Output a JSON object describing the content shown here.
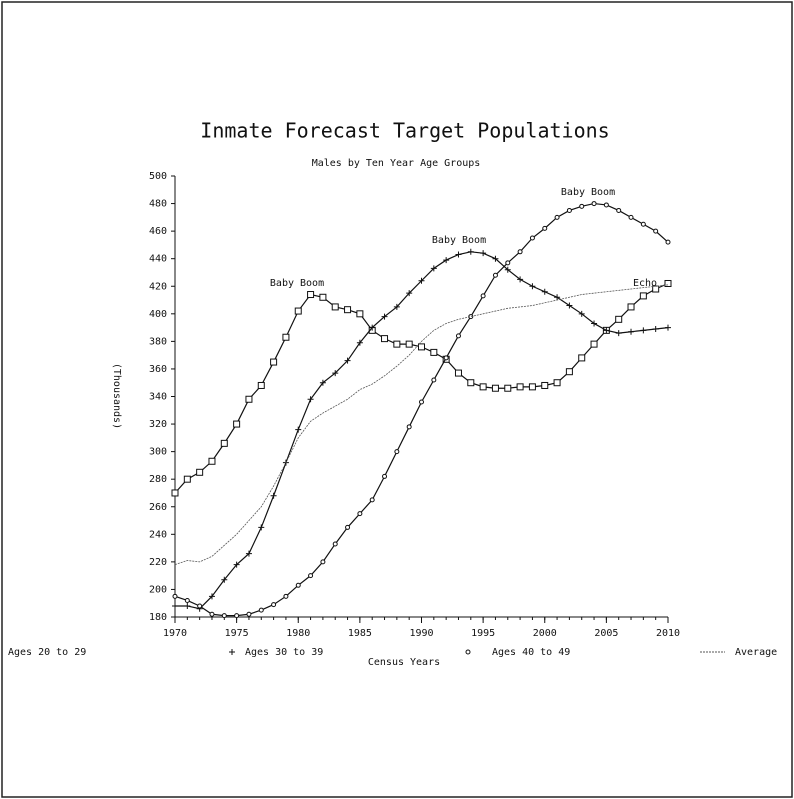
{
  "chart_data": {
    "type": "line",
    "title": "Inmate Forecast Target Populations",
    "subtitle": "Males by Ten Year Age Groups",
    "x_label": "Census Years",
    "y_label": "(Thousands)",
    "x": [
      1970,
      1971,
      1972,
      1973,
      1974,
      1975,
      1976,
      1977,
      1978,
      1979,
      1980,
      1981,
      1982,
      1983,
      1984,
      1985,
      1986,
      1987,
      1988,
      1989,
      1990,
      1991,
      1992,
      1993,
      1994,
      1995,
      1996,
      1997,
      1998,
      1999,
      2000,
      2001,
      2002,
      2003,
      2004,
      2005,
      2006,
      2007,
      2008,
      2009,
      2010
    ],
    "xlim": [
      1970,
      2010
    ],
    "xticks": [
      1970,
      1975,
      1980,
      1985,
      1990,
      1995,
      2000,
      2005,
      2010
    ],
    "ylim": [
      180,
      500
    ],
    "yticks": [
      180,
      200,
      220,
      240,
      260,
      280,
      300,
      320,
      340,
      360,
      380,
      400,
      420,
      440,
      460,
      480,
      500
    ],
    "series": [
      {
        "name": "Ages 20 to 29",
        "color": "#111111",
        "marker": "square",
        "values": [
          270,
          280,
          285,
          293,
          306,
          320,
          338,
          348,
          365,
          383,
          402,
          414,
          412,
          405,
          403,
          400,
          388,
          382,
          378,
          378,
          376,
          372,
          367,
          357,
          350,
          347,
          346,
          346,
          347,
          347,
          348,
          350,
          358,
          368,
          378,
          388,
          396,
          405,
          413,
          418,
          422
        ]
      },
      {
        "name": "Ages 30 to 39",
        "color": "#111111",
        "marker": "plus",
        "values": [
          188,
          188,
          186,
          195,
          207,
          218,
          226,
          245,
          268,
          292,
          316,
          338,
          350,
          357,
          366,
          379,
          390,
          398,
          405,
          415,
          424,
          433,
          439,
          443,
          445,
          444,
          440,
          432,
          425,
          420,
          416,
          412,
          406,
          400,
          393,
          388,
          386,
          387,
          388,
          389,
          390
        ]
      },
      {
        "name": "Ages 40 to 49",
        "color": "#111111",
        "marker": "circle",
        "values": [
          195,
          192,
          188,
          182,
          181,
          181,
          182,
          185,
          189,
          195,
          203,
          210,
          220,
          233,
          245,
          255,
          265,
          282,
          300,
          318,
          336,
          352,
          368,
          384,
          398,
          413,
          428,
          437,
          445,
          455,
          462,
          470,
          475,
          478,
          480,
          479,
          475,
          470,
          465,
          460,
          452
        ]
      },
      {
        "name": "Average",
        "color": "#555555",
        "marker": "none",
        "values": [
          218,
          221,
          220,
          224,
          232,
          240,
          250,
          260,
          275,
          292,
          310,
          322,
          328,
          333,
          338,
          345,
          349,
          355,
          362,
          370,
          380,
          388,
          393,
          396,
          398,
          400,
          402,
          404,
          405,
          406,
          408,
          410,
          412,
          414,
          415,
          416,
          417,
          418,
          419,
          420,
          421
        ]
      }
    ],
    "annotations": [
      "Baby Boom",
      "Baby Boom",
      "Baby Boom",
      "Echo"
    ]
  }
}
